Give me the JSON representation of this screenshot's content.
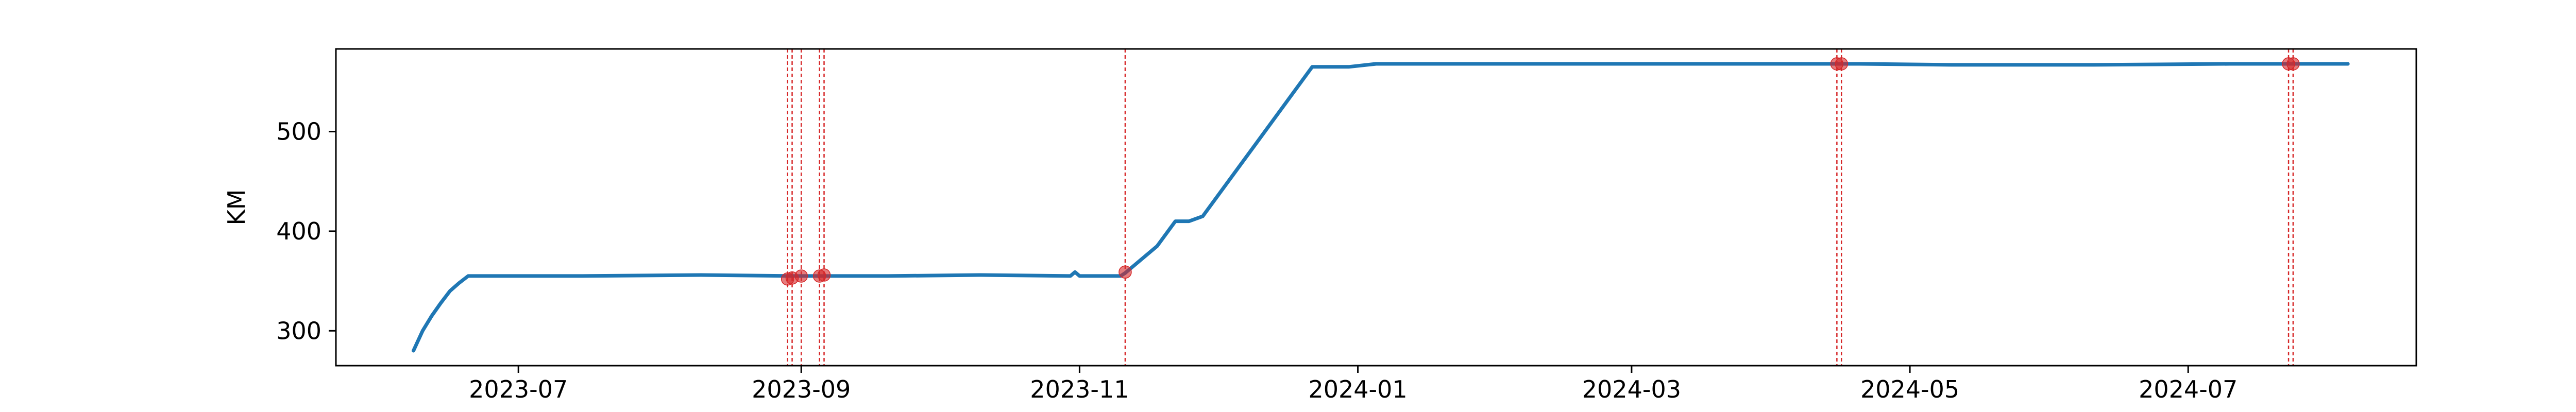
{
  "chart_data": {
    "type": "line",
    "title": "",
    "xlabel": "",
    "ylabel": "KM",
    "ylim": [
      265,
      583
    ],
    "xlim": [
      "2023-05-22",
      "2024-08-20"
    ],
    "x_ticks": [
      "2023-07-01",
      "2023-09-01",
      "2023-11-01",
      "2024-01-01",
      "2024-03-01",
      "2024-05-01",
      "2024-07-01"
    ],
    "x_tick_labels": [
      "2023-07",
      "2023-09",
      "2023-11",
      "2024-01",
      "2024-03",
      "2024-05",
      "2024-07"
    ],
    "y_ticks": [
      300,
      400,
      500
    ],
    "y_tick_labels": [
      "300",
      "400",
      "500"
    ],
    "grid": false,
    "series": [
      {
        "color": "#1f77b4",
        "x": [
          "2023-06-08",
          "2023-06-10",
          "2023-06-12",
          "2023-06-14",
          "2023-06-16",
          "2023-06-18",
          "2023-06-20",
          "2023-06-24",
          "2023-07-15",
          "2023-08-10",
          "2023-08-30",
          "2023-09-05",
          "2023-09-20",
          "2023-10-10",
          "2023-10-30",
          "2023-10-31",
          "2023-11-01",
          "2023-11-10",
          "2023-11-11",
          "2023-11-18",
          "2023-11-22",
          "2023-11-25",
          "2023-11-28",
          "2023-12-10",
          "2023-12-22",
          "2023-12-30",
          "2024-01-05",
          "2024-02-01",
          "2024-03-01",
          "2024-04-01",
          "2024-04-20",
          "2024-05-10",
          "2024-06-10",
          "2024-07-10",
          "2024-07-24",
          "2024-08-05"
        ],
        "y": [
          280,
          300,
          315,
          328,
          340,
          348,
          355,
          355,
          355,
          356,
          355,
          355,
          355,
          356,
          355,
          359,
          355,
          355,
          358,
          385,
          410,
          410,
          415,
          490,
          565,
          565,
          568,
          568,
          568,
          568,
          568,
          567,
          567,
          568,
          568,
          568
        ]
      }
    ],
    "marker_color": "#d62728",
    "events": [
      {
        "x": "2023-08-29",
        "y": 352
      },
      {
        "x": "2023-08-30",
        "y": 353
      },
      {
        "x": "2023-09-01",
        "y": 355
      },
      {
        "x": "2023-09-05",
        "y": 355
      },
      {
        "x": "2023-09-06",
        "y": 356
      },
      {
        "x": "2023-11-11",
        "y": 359
      },
      {
        "x": "2024-04-15",
        "y": 568
      },
      {
        "x": "2024-04-16",
        "y": 568
      },
      {
        "x": "2024-07-23",
        "y": 568
      },
      {
        "x": "2024-07-24",
        "y": 568
      }
    ]
  }
}
